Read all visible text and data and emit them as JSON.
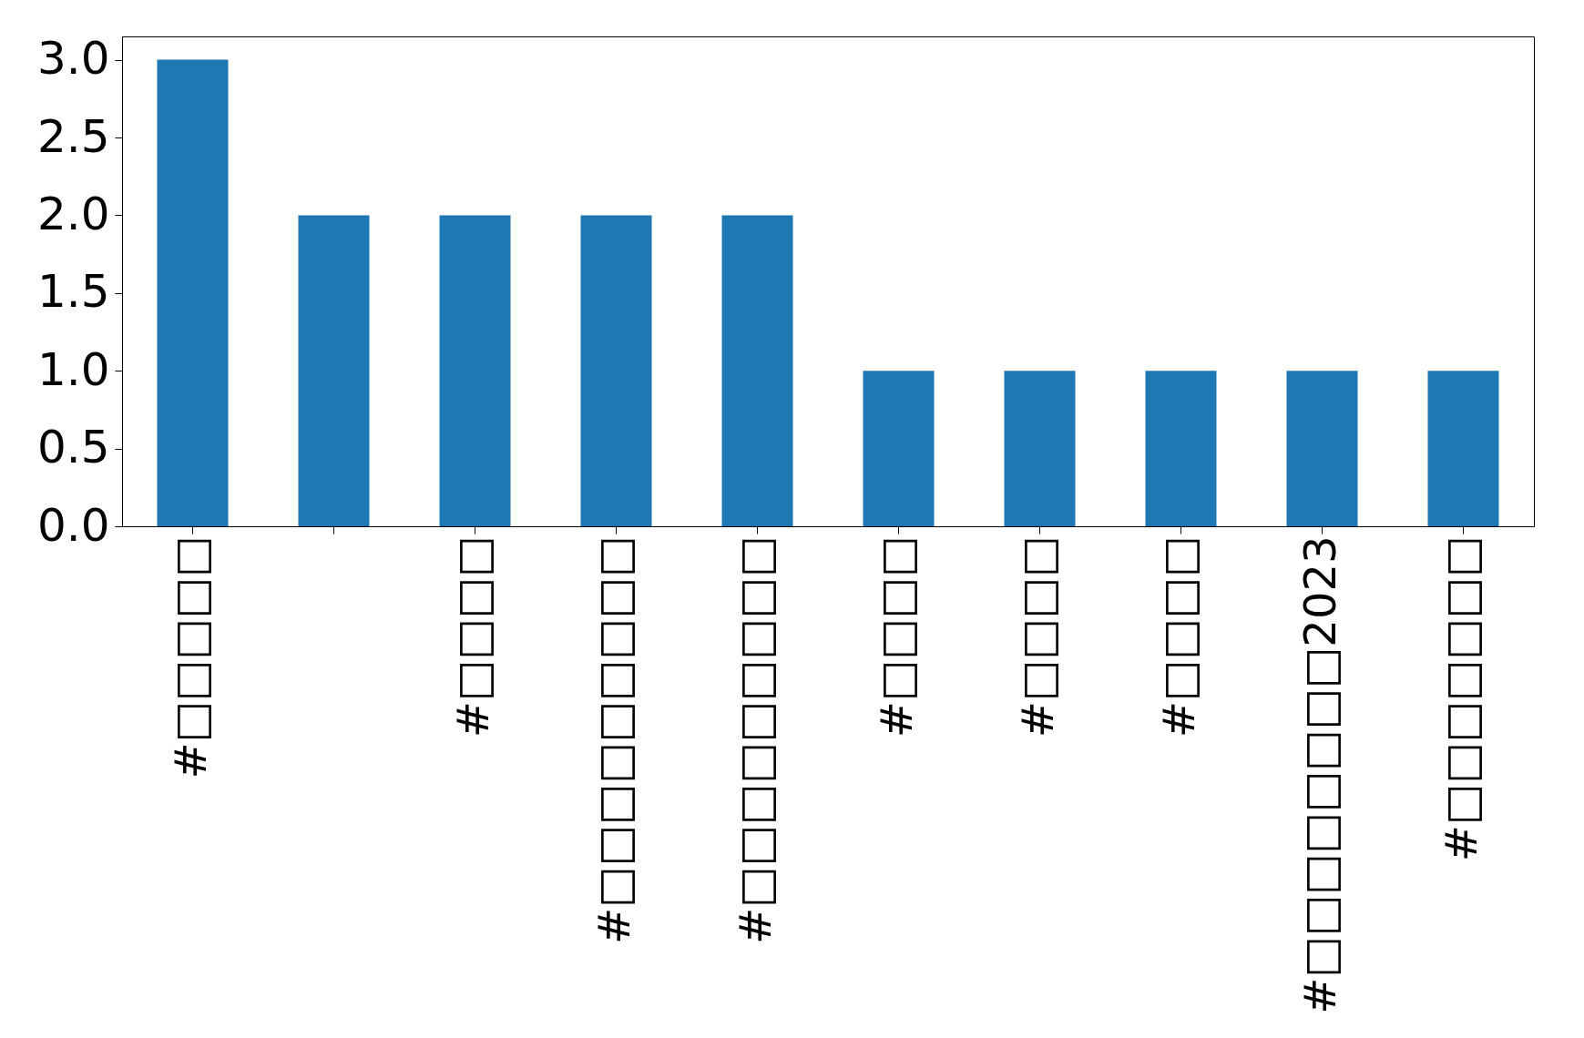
{
  "chart_data": {
    "type": "bar",
    "categories": [
      "#□□□□□",
      null,
      "#□□□□",
      "#□□□□□□□□□",
      "#□□□□□□□□□",
      "#□□□□",
      "#□□□□",
      "#□□□□",
      "#□□□□□□□□2023",
      "#□□□□□□□"
    ],
    "values": [
      3,
      2,
      2,
      2,
      2,
      1,
      1,
      1,
      1,
      1
    ],
    "color": "#1f77b4",
    "ylim": [
      0,
      3.15
    ],
    "yticks": [
      {
        "value": 0,
        "label": "0.0"
      },
      0.5,
      {
        "value": 1,
        "label": "1.0"
      },
      1.5,
      {
        "value": 2,
        "label": "2.0"
      },
      2.5,
      {
        "value": 3,
        "label": "3.0"
      }
    ],
    "grid": false
  }
}
